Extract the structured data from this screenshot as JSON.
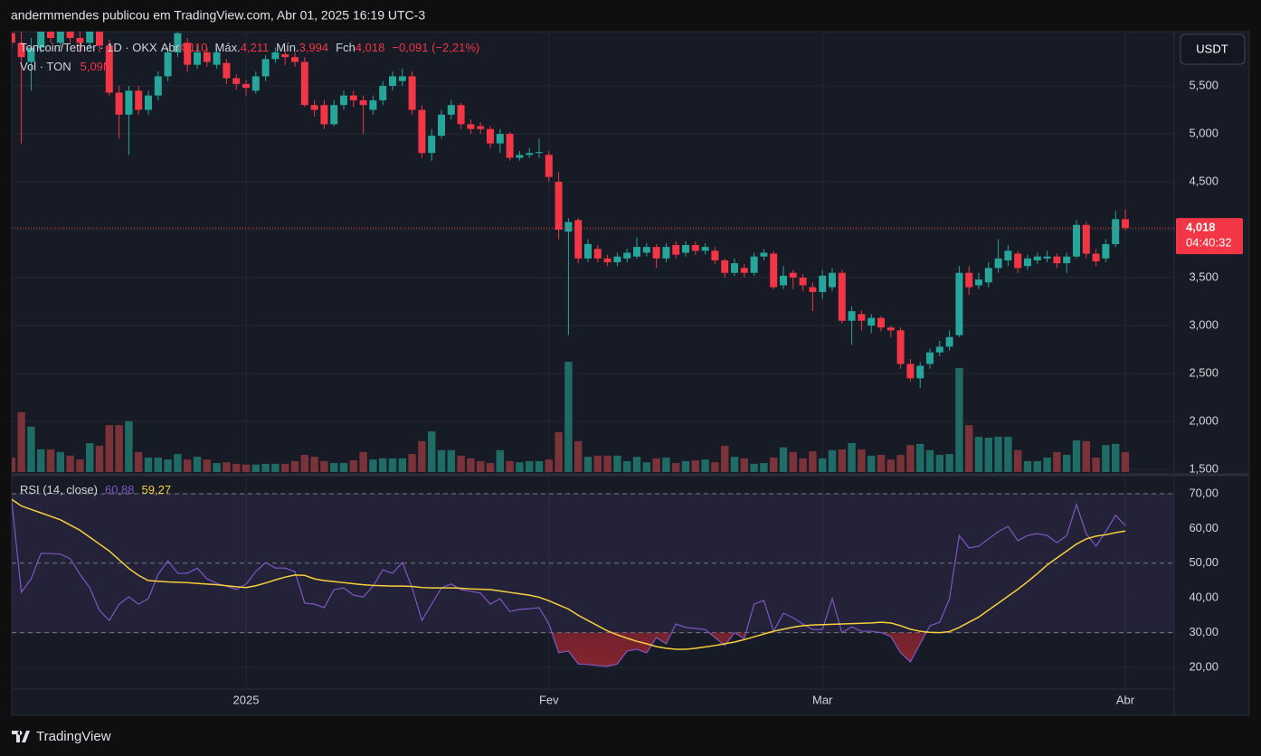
{
  "header": {
    "text": "andermmendes publicou em TradingView.com, Abr 01, 2025 16:19 UTC-3"
  },
  "footer": {
    "brand": "TradingView"
  },
  "currency_button": "USDT",
  "chart_data": [
    {
      "type": "candlestick",
      "legend": {
        "symbol": "Toncoin/Tether · 1D · OKX",
        "open_label": "Abr",
        "open": "4,110",
        "high_label": "Máx.",
        "high": "4,211",
        "low_label": "Mín.",
        "low": "3,994",
        "close_label": "Fch",
        "close": "4,018",
        "change": "−0,091 (−2,21%)",
        "volume_label": "Vol · TON",
        "volume": "5,09M"
      },
      "price_label": "4,018",
      "countdown": "04:40:32",
      "categories": [
        null,
        null,
        null,
        null,
        null,
        null,
        null,
        null,
        null,
        null,
        null,
        null,
        null,
        null,
        null,
        null,
        null,
        null,
        null,
        null,
        null,
        null,
        null,
        null,
        "2025",
        null,
        null,
        null,
        null,
        null,
        null,
        null,
        null,
        null,
        null,
        null,
        null,
        null,
        null,
        null,
        null,
        null,
        null,
        null,
        null,
        null,
        null,
        null,
        null,
        null,
        null,
        null,
        null,
        null,
        null,
        "Fev",
        null,
        null,
        null,
        null,
        null,
        null,
        null,
        null,
        null,
        null,
        null,
        null,
        null,
        null,
        null,
        null,
        null,
        null,
        null,
        null,
        null,
        null,
        null,
        null,
        null,
        null,
        null,
        "Mar",
        null,
        null,
        null,
        null,
        null,
        null,
        null,
        null,
        null,
        null,
        null,
        null,
        null,
        null,
        null,
        null,
        null,
        null,
        null,
        null,
        null,
        null,
        null,
        null,
        null,
        null,
        null,
        null,
        null,
        null,
        "Abr"
      ],
      "open": [
        6.05,
        5.95,
        5.75,
        5.9,
        6.1,
        5.95,
        6.15,
        6.0,
        5.95,
        6.1,
        5.92,
        5.43,
        5.2,
        5.45,
        5.25,
        5.4,
        5.6,
        5.85,
        5.95,
        5.72,
        5.85,
        5.72,
        5.74,
        5.58,
        5.52,
        5.45,
        5.6,
        5.78,
        5.83,
        5.8,
        5.75,
        5.3,
        5.3,
        5.1,
        5.3,
        5.4,
        5.35,
        5.25,
        5.35,
        5.5,
        5.55,
        5.6,
        5.25,
        4.8,
        4.98,
        5.2,
        5.3,
        5.1,
        5.08,
        5.05,
        4.9,
        5.0,
        4.75,
        4.78,
        4.8,
        4.78,
        4.5,
        3.98,
        4.1,
        3.7,
        3.8,
        3.7,
        3.66,
        3.7,
        3.72,
        3.76,
        3.82,
        3.7,
        3.84,
        3.76,
        3.84,
        3.78,
        3.78,
        3.68,
        3.55,
        3.6,
        3.55,
        3.72,
        3.75,
        3.42,
        3.55,
        3.5,
        3.4,
        3.35,
        3.4,
        3.55,
        3.05,
        3.12,
        3.0,
        3.08,
        2.98,
        2.95,
        2.6,
        2.45,
        2.6,
        2.72,
        2.78,
        2.9,
        3.55,
        3.42,
        3.45,
        3.6,
        3.68,
        3.75,
        3.62,
        3.68,
        3.7,
        3.72,
        3.65,
        3.72,
        4.05,
        3.75,
        3.7,
        3.85,
        4.11
      ],
      "high": [
        6.2,
        6.1,
        6.0,
        6.2,
        6.2,
        6.25,
        6.25,
        6.1,
        6.2,
        6.15,
        5.98,
        5.5,
        5.5,
        5.5,
        5.45,
        5.65,
        5.9,
        6.15,
        6.0,
        5.92,
        5.9,
        5.9,
        5.78,
        5.62,
        5.56,
        5.65,
        5.82,
        5.9,
        5.88,
        5.85,
        5.8,
        5.35,
        5.35,
        5.35,
        5.45,
        5.45,
        5.4,
        5.4,
        5.55,
        5.65,
        5.68,
        5.65,
        5.3,
        5.05,
        5.25,
        5.35,
        5.32,
        5.15,
        5.12,
        5.08,
        5.05,
        5.02,
        4.82,
        4.85,
        4.95,
        4.82,
        4.6,
        4.12,
        4.12,
        3.9,
        3.84,
        3.74,
        3.76,
        3.8,
        3.92,
        3.86,
        3.85,
        3.86,
        3.88,
        3.88,
        3.88,
        3.86,
        3.82,
        3.7,
        3.7,
        3.64,
        3.76,
        3.8,
        3.78,
        3.62,
        3.58,
        3.54,
        3.45,
        3.58,
        3.6,
        3.58,
        3.2,
        3.16,
        3.12,
        3.1,
        3.0,
        2.98,
        2.65,
        2.62,
        2.76,
        2.84,
        2.95,
        3.62,
        3.62,
        3.55,
        3.66,
        3.9,
        3.84,
        3.78,
        3.74,
        3.76,
        3.78,
        3.75,
        3.76,
        4.1,
        4.08,
        3.8,
        3.9,
        4.2,
        4.211
      ],
      "low": [
        5.9,
        4.9,
        5.45,
        5.85,
        5.95,
        5.9,
        5.95,
        5.85,
        5.9,
        5.85,
        5.4,
        4.95,
        4.78,
        5.2,
        5.2,
        5.35,
        5.55,
        5.8,
        5.65,
        5.68,
        5.7,
        5.68,
        5.52,
        5.46,
        5.4,
        5.42,
        5.55,
        5.74,
        5.72,
        5.7,
        5.28,
        5.18,
        5.05,
        5.08,
        5.25,
        5.28,
        5.0,
        5.2,
        5.3,
        5.45,
        5.5,
        5.2,
        4.75,
        4.72,
        4.95,
        5.15,
        5.05,
        5.0,
        5.0,
        4.85,
        4.8,
        4.72,
        4.72,
        4.75,
        4.75,
        4.5,
        3.9,
        2.9,
        3.65,
        3.66,
        3.66,
        3.62,
        3.62,
        3.66,
        3.7,
        3.72,
        3.6,
        3.66,
        3.7,
        3.72,
        3.74,
        3.74,
        3.64,
        3.5,
        3.52,
        3.5,
        3.52,
        3.68,
        3.38,
        3.38,
        3.38,
        3.36,
        3.15,
        3.28,
        3.36,
        3.02,
        2.8,
        2.95,
        2.92,
        2.94,
        2.88,
        2.55,
        2.42,
        2.35,
        2.55,
        2.68,
        2.74,
        2.88,
        3.32,
        3.38,
        3.4,
        3.55,
        3.62,
        3.55,
        3.58,
        3.64,
        3.66,
        3.6,
        3.55,
        3.7,
        3.7,
        3.62,
        3.66,
        3.82,
        3.994
      ],
      "close": [
        5.95,
        5.8,
        5.9,
        6.1,
        6.0,
        6.15,
        6.0,
        5.95,
        6.1,
        5.92,
        5.43,
        5.2,
        5.45,
        5.25,
        5.4,
        5.6,
        5.85,
        6.05,
        5.72,
        5.85,
        5.75,
        5.85,
        5.58,
        5.52,
        5.48,
        5.6,
        5.78,
        5.85,
        5.8,
        5.75,
        5.3,
        5.25,
        5.1,
        5.3,
        5.4,
        5.35,
        5.3,
        5.35,
        5.5,
        5.6,
        5.6,
        5.25,
        4.8,
        4.98,
        5.2,
        5.3,
        5.1,
        5.05,
        5.05,
        4.9,
        5.0,
        4.75,
        4.78,
        4.8,
        4.81,
        4.55,
        4.0,
        4.08,
        3.7,
        3.85,
        3.7,
        3.66,
        3.72,
        3.76,
        3.82,
        3.82,
        3.7,
        3.82,
        3.74,
        3.84,
        3.78,
        3.82,
        3.68,
        3.55,
        3.65,
        3.55,
        3.72,
        3.76,
        3.4,
        3.52,
        3.5,
        3.42,
        3.35,
        3.52,
        3.55,
        3.05,
        3.15,
        3.05,
        3.08,
        2.98,
        2.95,
        2.6,
        2.45,
        2.58,
        2.72,
        2.78,
        2.88,
        3.55,
        3.4,
        3.48,
        3.6,
        3.7,
        3.78,
        3.6,
        3.7,
        3.72,
        3.72,
        3.65,
        3.72,
        4.05,
        3.75,
        3.67,
        3.85,
        4.11,
        4.018
      ],
      "volume": [
        3.7,
        15.3,
        11.6,
        5.8,
        5.8,
        5.1,
        4.2,
        3.2,
        7.4,
        6.7,
        12.0,
        12.0,
        13.0,
        5.1,
        3.7,
        3.7,
        3.2,
        4.6,
        3.2,
        3.9,
        3.2,
        2.3,
        2.5,
        2.1,
        1.9,
        1.9,
        2.1,
        2.1,
        2.1,
        2.8,
        4.4,
        3.9,
        2.8,
        2.3,
        2.3,
        3.0,
        5.1,
        3.2,
        3.5,
        3.5,
        3.5,
        4.6,
        7.9,
        10.4,
        5.6,
        5.6,
        4.2,
        3.5,
        2.8,
        2.3,
        5.6,
        2.8,
        2.5,
        2.8,
        2.8,
        3.2,
        10.2,
        28.2,
        7.9,
        3.9,
        4.2,
        4.2,
        4.2,
        2.8,
        3.9,
        2.5,
        3.5,
        3.7,
        2.3,
        2.8,
        3.0,
        3.2,
        2.5,
        6.7,
        3.9,
        3.5,
        2.1,
        2.3,
        3.7,
        6.3,
        5.1,
        3.5,
        5.3,
        3.5,
        5.6,
        5.8,
        7.4,
        5.8,
        4.2,
        4.4,
        3.2,
        4.4,
        6.9,
        7.2,
        5.6,
        4.4,
        4.6,
        26.6,
        12.0,
        9.0,
        8.8,
        9.0,
        9.0,
        5.6,
        2.8,
        2.8,
        3.7,
        5.1,
        4.4,
        8.1,
        7.9,
        3.7,
        6.9,
        7.2,
        5.09
      ],
      "up_color": "#26a69a",
      "down_color": "#f23645",
      "volume_up_color": "#1f6b66",
      "volume_down_color": "#7a3338",
      "ylim": [
        1.472,
        6.066
      ],
      "yticks": [
        {
          "value": 1.5,
          "label": "1,500"
        },
        {
          "value": 2.0,
          "label": "2,000"
        },
        {
          "value": 2.5,
          "label": "2,500"
        },
        {
          "value": 3.0,
          "label": "3,000"
        },
        {
          "value": 3.5,
          "label": "3,500"
        },
        {
          "value": 4.0,
          "label": "4,000"
        },
        {
          "value": 4.5,
          "label": "4,500"
        },
        {
          "value": 5.0,
          "label": "5,000"
        },
        {
          "value": 5.5,
          "label": "5,500"
        }
      ],
      "grid": true
    },
    {
      "type": "line",
      "title": "RSI (14, close)",
      "series": [
        {
          "color": "#7e57c2",
          "last_label": "60,88",
          "values": [
            68.4,
            41.6,
            45.5,
            52.8,
            52.8,
            52.6,
            51.3,
            46.8,
            42.9,
            36.4,
            33.5,
            38.2,
            40.3,
            38.2,
            39.8,
            46.8,
            50.7,
            47.1,
            47.1,
            48.6,
            45.5,
            44.2,
            43.4,
            42.4,
            44.0,
            47.6,
            50.2,
            48.6,
            48.6,
            47.6,
            38.5,
            38.2,
            37.2,
            42.4,
            42.9,
            40.8,
            40.3,
            43.4,
            48.1,
            47.1,
            50.2,
            42.9,
            33.5,
            38.2,
            42.9,
            44.0,
            42.4,
            41.9,
            41.4,
            38.2,
            39.8,
            36.1,
            36.7,
            36.9,
            37.2,
            32.5,
            24.2,
            24.7,
            21.0,
            20.8,
            20.5,
            20.3,
            21.0,
            24.7,
            25.2,
            24.2,
            28.6,
            26.8,
            32.5,
            31.5,
            31.2,
            30.9,
            28.6,
            26.3,
            30.0,
            28.3,
            38.2,
            39.3,
            30.4,
            35.6,
            34.3,
            32.5,
            30.9,
            30.9,
            39.8,
            30.0,
            31.7,
            30.4,
            30.4,
            30.0,
            28.9,
            24.2,
            21.6,
            26.8,
            32.0,
            33.0,
            39.8,
            58.0,
            54.4,
            54.9,
            57.0,
            59.1,
            60.6,
            56.5,
            58.0,
            58.5,
            58.0,
            55.9,
            58.0,
            66.9,
            58.5,
            54.9,
            59.1,
            63.8,
            60.88
          ]
        },
        {
          "color": "#f7d03c",
          "last_label": "59,27",
          "values": [
            68.4,
            66.5,
            65.5,
            64.5,
            63.5,
            62.5,
            61,
            59.5,
            57.5,
            55.5,
            53.5,
            51,
            48.5,
            46.5,
            45,
            44.8,
            44.6,
            44.5,
            44.4,
            44.2,
            44,
            43.8,
            43.5,
            43.2,
            43,
            43.5,
            44.3,
            45.2,
            46,
            46.6,
            46.5,
            45.5,
            45,
            44.7,
            44.4,
            44.1,
            43.8,
            43.6,
            43.5,
            43.4,
            43.4,
            43.3,
            43,
            42.9,
            42.9,
            42.9,
            42.8,
            42.6,
            42.5,
            42.4,
            42,
            41.6,
            41.2,
            40.8,
            40.2,
            39.2,
            38,
            36.8,
            35,
            33.5,
            32,
            30.5,
            29.4,
            28.4,
            27.5,
            26.8,
            26,
            25.5,
            25.2,
            25.2,
            25.5,
            25.9,
            26.3,
            26.8,
            27.3,
            28,
            28.8,
            29.6,
            30.4,
            31,
            31.6,
            32,
            32.2,
            32.3,
            32.4,
            32.5,
            32.6,
            32.7,
            32.8,
            33,
            32.8,
            32,
            31,
            30.4,
            30.1,
            30,
            30.3,
            31.5,
            33,
            34.5,
            36.5,
            38.5,
            40.5,
            42.5,
            44.7,
            47,
            49.5,
            51.5,
            53.5,
            55.5,
            57,
            57.8,
            58.2,
            58.8,
            59.27
          ]
        }
      ],
      "levels": [
        70,
        50,
        30
      ],
      "oversold_color": "#b22833",
      "ylim": [
        6.46,
        74.69
      ],
      "yticks": [
        {
          "value": 20,
          "label": "20,00"
        },
        {
          "value": 30,
          "label": "30,00"
        },
        {
          "value": 40,
          "label": "40,00"
        },
        {
          "value": 50,
          "label": "50,00"
        },
        {
          "value": 60,
          "label": "60,00"
        },
        {
          "value": 70,
          "label": "70,00"
        }
      ],
      "grid": true
    }
  ]
}
